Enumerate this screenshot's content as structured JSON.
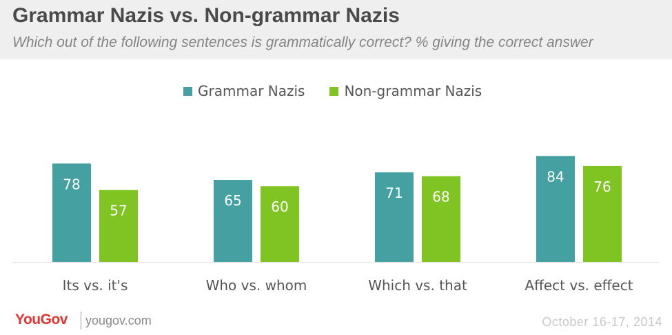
{
  "header": {
    "title": "Grammar Nazis vs. Non-grammar Nazis",
    "subtitle": "Which out of the following sentences is grammatically correct? % giving the correct answer"
  },
  "legend": {
    "items": [
      {
        "label": "Grammar Nazis",
        "color": "#45a0a2"
      },
      {
        "label": "Non-grammar Nazis",
        "color": "#80c423"
      }
    ]
  },
  "chart_data": {
    "type": "bar",
    "title": "Grammar Nazis vs. Non-grammar Nazis",
    "subtitle": "Which out of the following sentences is grammatically correct? % giving the correct answer",
    "categories": [
      "Its vs. it's",
      "Who vs. whom",
      "Which vs. that",
      "Affect vs. effect"
    ],
    "series": [
      {
        "name": "Grammar Nazis",
        "color": "#45a0a2",
        "values": [
          78,
          65,
          71,
          84
        ]
      },
      {
        "name": "Non-grammar Nazis",
        "color": "#80c423",
        "values": [
          57,
          60,
          68,
          76
        ]
      }
    ],
    "xlabel": "",
    "ylabel": "",
    "ylim": [
      0,
      100
    ],
    "grid": false,
    "legend_position": "top",
    "data_labels": true
  },
  "footer": {
    "logo": "YouGov",
    "url": "yougov.com",
    "date": "October 16-17, 2014"
  }
}
